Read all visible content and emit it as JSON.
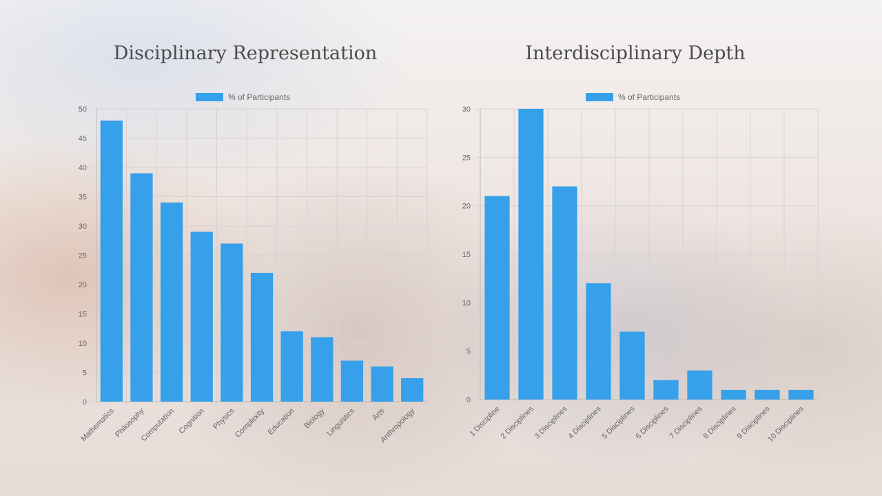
{
  "colors": {
    "bar": "#36a0ea",
    "grid": "#d8d2d0",
    "text": "#666666"
  },
  "chart_data": [
    {
      "type": "bar",
      "title": "Disciplinary Representation",
      "legend": "% of Participants",
      "legend_position": "top",
      "categories": [
        "Mathematics",
        "Philosophy",
        "Computation",
        "Cognition",
        "Physics",
        "Complexity",
        "Education",
        "Biology",
        "Linguistics",
        "Arts",
        "Anthropology"
      ],
      "values": [
        48,
        39,
        34,
        29,
        27,
        22,
        12,
        11,
        7,
        6,
        4
      ],
      "ylim": [
        0,
        50
      ],
      "ystep": 5,
      "grid": true
    },
    {
      "type": "bar",
      "title": "Interdisciplinary Depth",
      "legend": "% of Participants",
      "legend_position": "top",
      "categories": [
        "1 Discipline",
        "2 Disciplines",
        "3 Disciplines",
        "4 Disciplines",
        "5 Disciplines",
        "6 Disciplines",
        "7 Disciplines",
        "8 Disciplines",
        "9 Disciplines",
        "10 Disciplines"
      ],
      "values": [
        21,
        30,
        22,
        12,
        7,
        2,
        3,
        1,
        1,
        1
      ],
      "ylim": [
        0,
        30
      ],
      "ystep": 5,
      "grid": true
    }
  ]
}
